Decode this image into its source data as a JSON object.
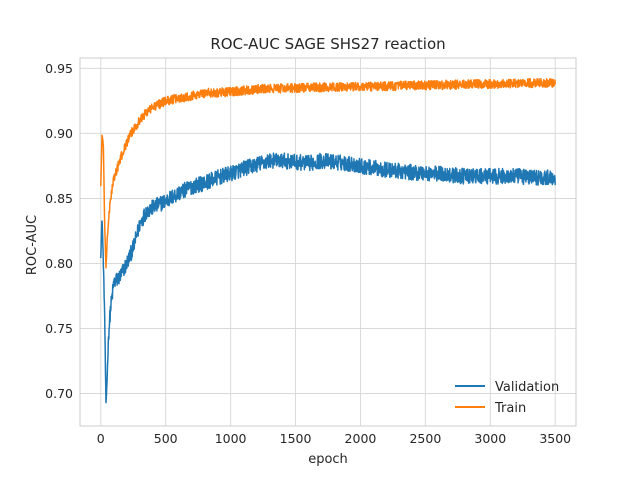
{
  "chart_data": {
    "type": "line",
    "title": "ROC-AUC SAGE SHS27 reaction",
    "xlabel": "epoch",
    "ylabel": "ROC-AUC",
    "xlim": [
      -160,
      3660
    ],
    "ylim": [
      0.675,
      0.958
    ],
    "xticks": [
      0,
      500,
      1000,
      1500,
      2000,
      2500,
      3000,
      3500
    ],
    "yticks": [
      0.7,
      0.75,
      0.8,
      0.85,
      0.9,
      0.95
    ],
    "ytick_labels": [
      "0.70",
      "0.75",
      "0.80",
      "0.85",
      "0.90",
      "0.95"
    ],
    "grid": true,
    "legend_position": "lower-right",
    "series": [
      {
        "name": "Validation",
        "color": "#1f77b4",
        "noise": 0.006,
        "x": [
          0,
          10,
          20,
          30,
          40,
          50,
          60,
          75,
          100,
          150,
          200,
          250,
          300,
          350,
          400,
          500,
          600,
          700,
          800,
          900,
          1000,
          1100,
          1200,
          1300,
          1400,
          1500,
          1600,
          1700,
          1800,
          1900,
          2000,
          2200,
          2400,
          2600,
          2800,
          3000,
          3200,
          3400,
          3500
        ],
        "y": [
          0.807,
          0.835,
          0.8,
          0.76,
          0.69,
          0.715,
          0.745,
          0.765,
          0.785,
          0.79,
          0.8,
          0.812,
          0.83,
          0.84,
          0.843,
          0.848,
          0.854,
          0.859,
          0.862,
          0.866,
          0.869,
          0.873,
          0.876,
          0.879,
          0.879,
          0.878,
          0.877,
          0.879,
          0.878,
          0.877,
          0.875,
          0.872,
          0.87,
          0.869,
          0.867,
          0.867,
          0.867,
          0.866,
          0.866
        ]
      },
      {
        "name": "Train",
        "color": "#ff7f0e",
        "noise": 0.0035,
        "x": [
          0,
          10,
          20,
          30,
          40,
          50,
          75,
          100,
          150,
          200,
          250,
          300,
          350,
          400,
          500,
          600,
          700,
          800,
          1000,
          1200,
          1500,
          2000,
          2500,
          3000,
          3500
        ],
        "y": [
          0.86,
          0.9,
          0.89,
          0.83,
          0.795,
          0.82,
          0.85,
          0.865,
          0.88,
          0.893,
          0.903,
          0.91,
          0.916,
          0.92,
          0.925,
          0.927,
          0.929,
          0.931,
          0.932,
          0.934,
          0.935,
          0.936,
          0.937,
          0.938,
          0.939
        ]
      }
    ]
  }
}
